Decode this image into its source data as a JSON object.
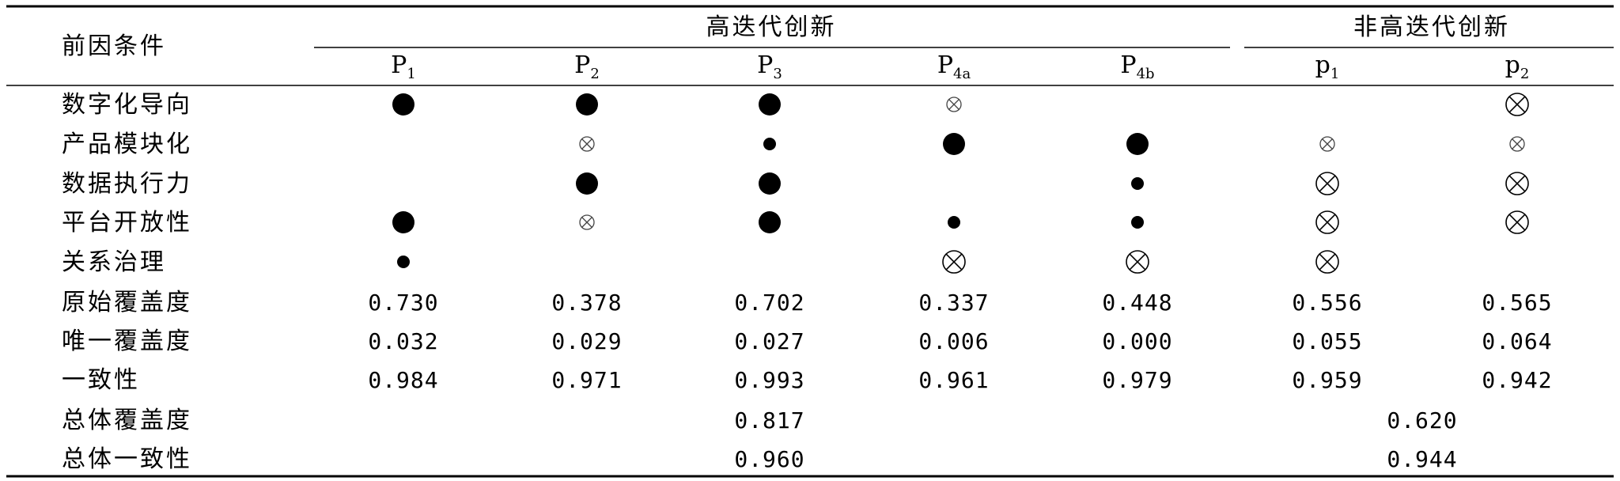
{
  "table": {
    "header": {
      "condition_label": "前因条件",
      "groups": [
        {
          "label": "高迭代创新"
        },
        {
          "label": "非高迭代创新"
        }
      ],
      "columns": [
        {
          "base": "P",
          "sub": "1"
        },
        {
          "base": "P",
          "sub": "2"
        },
        {
          "base": "P",
          "sub": "3"
        },
        {
          "base": "P",
          "sub": "4a"
        },
        {
          "base": "P",
          "sub": "4b"
        },
        {
          "base": "p",
          "sub": "1"
        },
        {
          "base": "p",
          "sub": "2"
        }
      ]
    },
    "symbol_legend": {
      "core_present": "large-filled-circle-icon",
      "peripheral_present": "small-filled-circle-icon",
      "core_absent": "large-crossed-circle-icon",
      "peripheral_absent": "small-crossed-circle-icon"
    },
    "conditions": [
      {
        "label": "数字化导向",
        "cells": [
          "core_present",
          "core_present",
          "core_present",
          "peripheral_absent",
          "",
          "",
          "core_absent"
        ]
      },
      {
        "label": "产品模块化",
        "cells": [
          "",
          "peripheral_absent",
          "peripheral_present",
          "core_present",
          "core_present",
          "peripheral_absent",
          "peripheral_absent"
        ]
      },
      {
        "label": "数据执行力",
        "cells": [
          "",
          "core_present",
          "core_present",
          "",
          "peripheral_present",
          "core_absent",
          "core_absent"
        ]
      },
      {
        "label": "平台开放性",
        "cells": [
          "core_present",
          "peripheral_absent",
          "core_present",
          "peripheral_present",
          "peripheral_present",
          "core_absent",
          "core_absent"
        ]
      },
      {
        "label": "关系治理",
        "cells": [
          "peripheral_present",
          "",
          "",
          "core_absent",
          "core_absent",
          "core_absent",
          ""
        ]
      }
    ],
    "metrics": [
      {
        "label": "原始覆盖度",
        "values": [
          "0.730",
          "0.378",
          "0.702",
          "0.337",
          "0.448",
          "0.556",
          "0.565"
        ]
      },
      {
        "label": "唯一覆盖度",
        "values": [
          "0.032",
          "0.029",
          "0.027",
          "0.006",
          "0.000",
          "0.055",
          "0.064"
        ]
      },
      {
        "label": "一致性",
        "values": [
          "0.984",
          "0.971",
          "0.993",
          "0.961",
          "0.979",
          "0.959",
          "0.942"
        ]
      }
    ],
    "totals": [
      {
        "label": "总体覆盖度",
        "high_value": "0.817",
        "non_high_value": "0.620"
      },
      {
        "label": "总体一致性",
        "high_value": "0.960",
        "non_high_value": "0.944"
      }
    ]
  }
}
